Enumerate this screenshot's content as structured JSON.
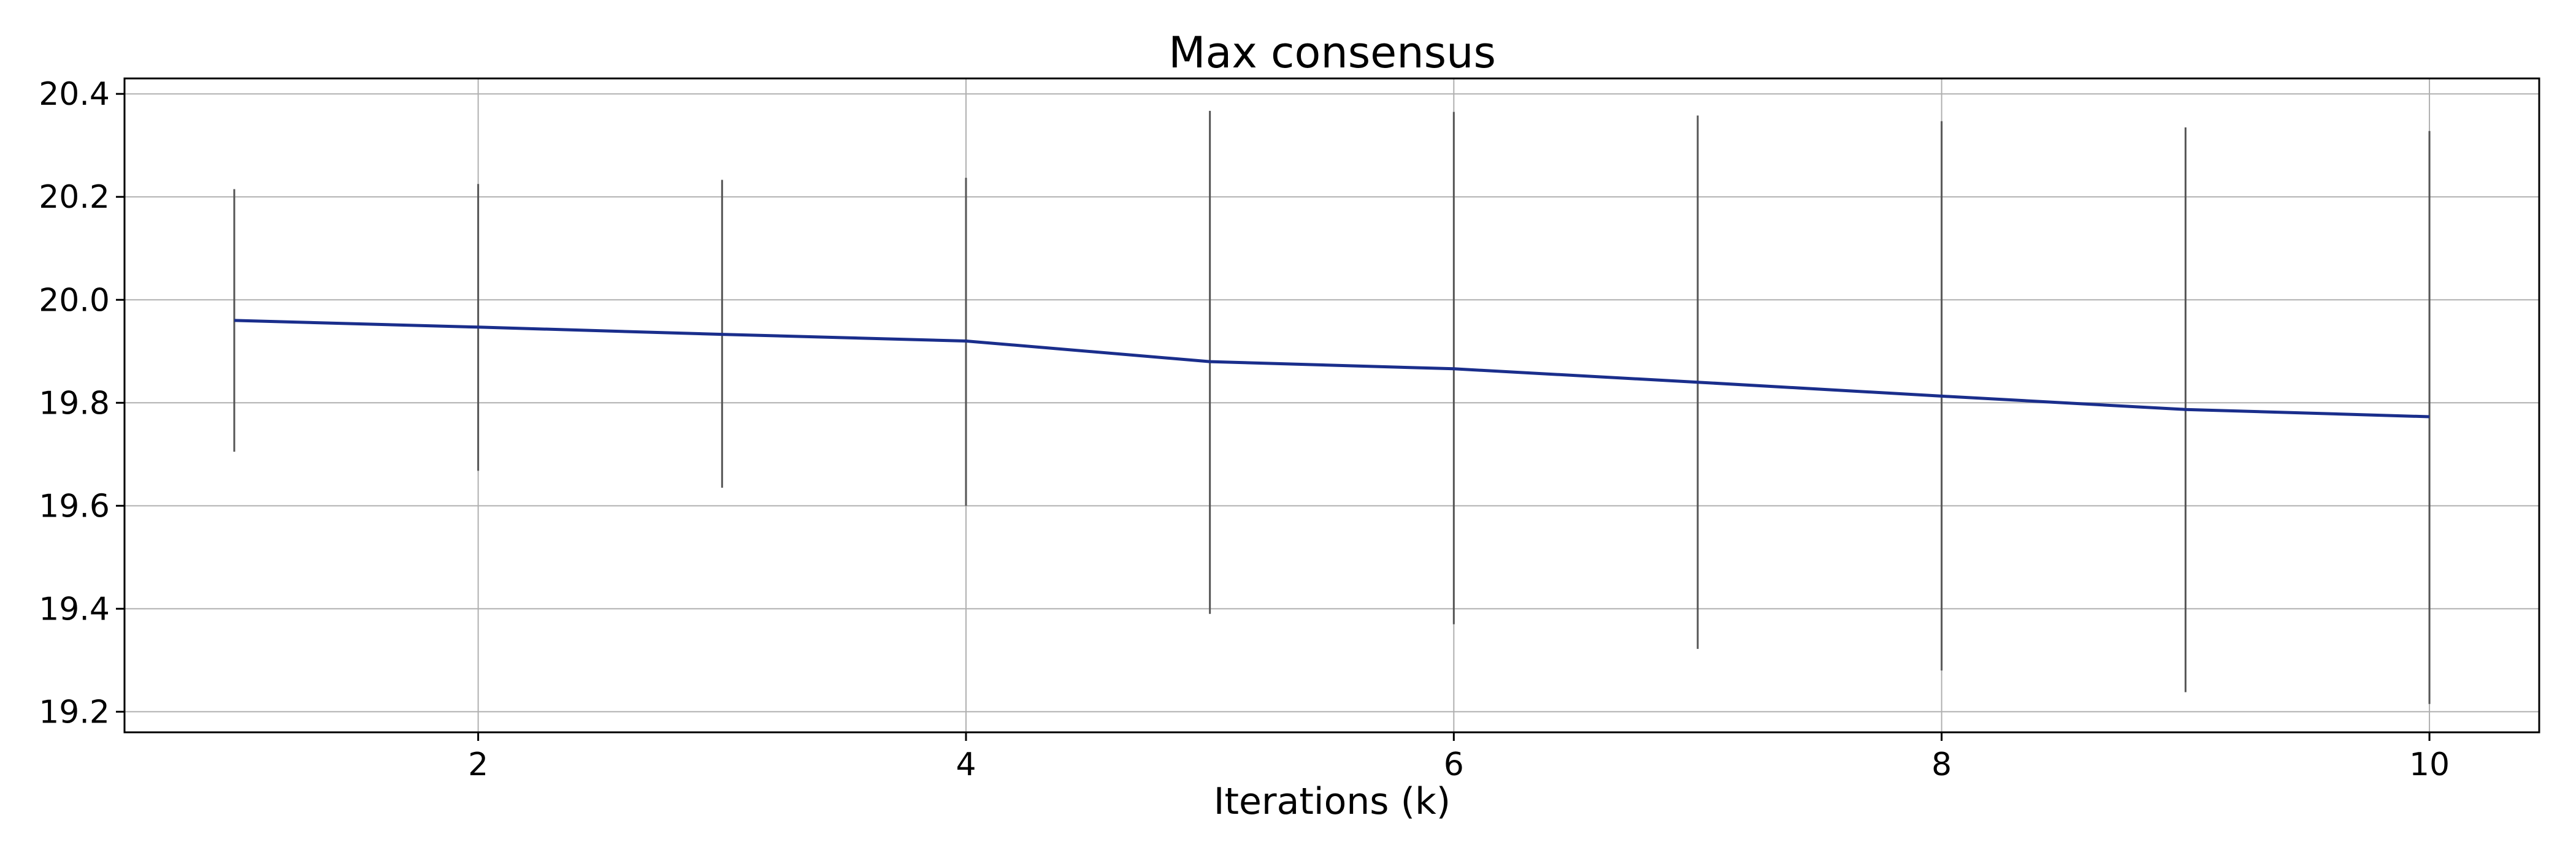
{
  "chart_data": {
    "type": "line",
    "title": "Max consensus",
    "xlabel": "Iterations (k)",
    "ylabel": "",
    "xlim": [
      0.55,
      10.45
    ],
    "ylim": [
      19.16,
      20.43
    ],
    "xticks": [
      "2",
      "4",
      "6",
      "8",
      "10"
    ],
    "xtick_values": [
      2,
      4,
      6,
      8,
      10
    ],
    "yticks": [
      "19.2",
      "19.4",
      "19.6",
      "19.8",
      "20.0",
      "20.2",
      "20.4"
    ],
    "ytick_values": [
      19.2,
      19.4,
      19.6,
      19.8,
      20.0,
      20.2,
      20.4
    ],
    "grid": true,
    "series": [
      {
        "x": [
          1,
          2,
          3,
          4,
          5,
          6,
          7,
          8,
          9,
          10
        ],
        "values": [
          19.96,
          19.947,
          19.933,
          19.92,
          19.88,
          19.866,
          19.84,
          19.813,
          19.787,
          19.773
        ],
        "error_low": [
          19.705,
          19.668,
          19.635,
          19.6,
          19.39,
          19.37,
          19.322,
          19.28,
          19.238,
          19.215
        ],
        "error_high": [
          20.215,
          20.225,
          20.233,
          20.237,
          20.367,
          20.365,
          20.358,
          20.347,
          20.335,
          20.328
        ],
        "color": "#1a2e8c"
      }
    ],
    "errorbar_color": "#555555",
    "grid_color": "#b0b0b0"
  }
}
